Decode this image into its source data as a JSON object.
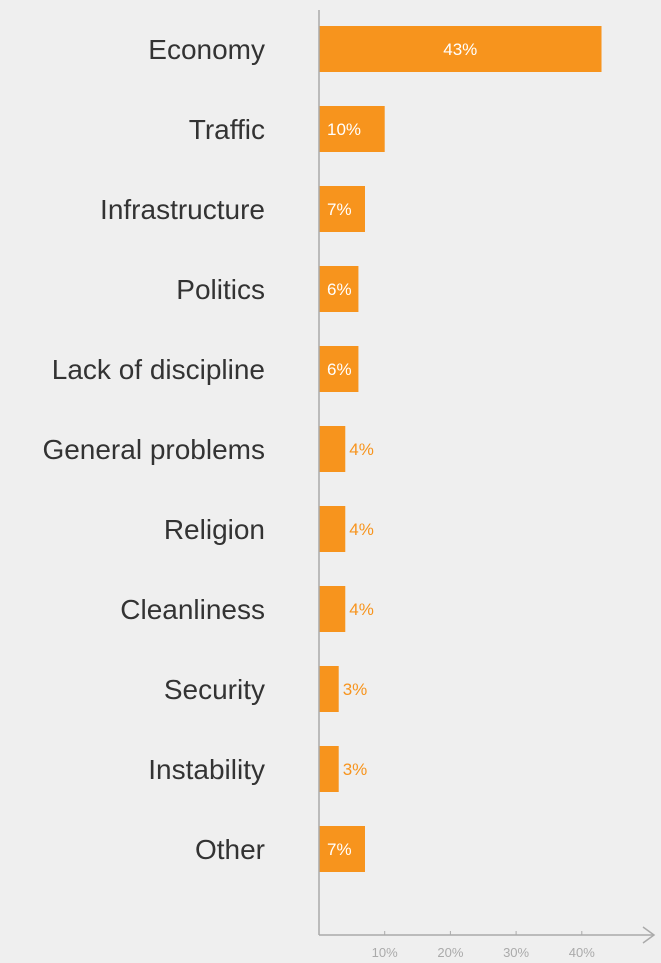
{
  "chart_data": {
    "type": "bar",
    "orientation": "horizontal",
    "title": "",
    "xlabel": "",
    "ylabel": "",
    "categories": [
      "Economy",
      "Traffic",
      "Infrastructure",
      "Politics",
      "Lack of discipline",
      "General problems",
      "Religion",
      "Cleanliness",
      "Security",
      "Instability",
      "Other"
    ],
    "values": [
      43,
      10,
      7,
      6,
      6,
      4,
      4,
      4,
      3,
      3,
      7
    ],
    "value_labels": [
      "43%",
      "10%",
      "7%",
      "6%",
      "6%",
      "4%",
      "4%",
      "4%",
      "3%",
      "3%",
      "7%"
    ],
    "xticks": [
      10,
      20,
      30,
      40
    ],
    "xtick_labels": [
      "10%",
      "20%",
      "30%",
      "40%"
    ],
    "xlim": [
      0,
      50
    ],
    "grid": false,
    "bar_color": "#f7941d",
    "label_inside_color": "#ffffff",
    "label_outside_color": "#f7941d",
    "axis_color": "#aaaaaa"
  }
}
